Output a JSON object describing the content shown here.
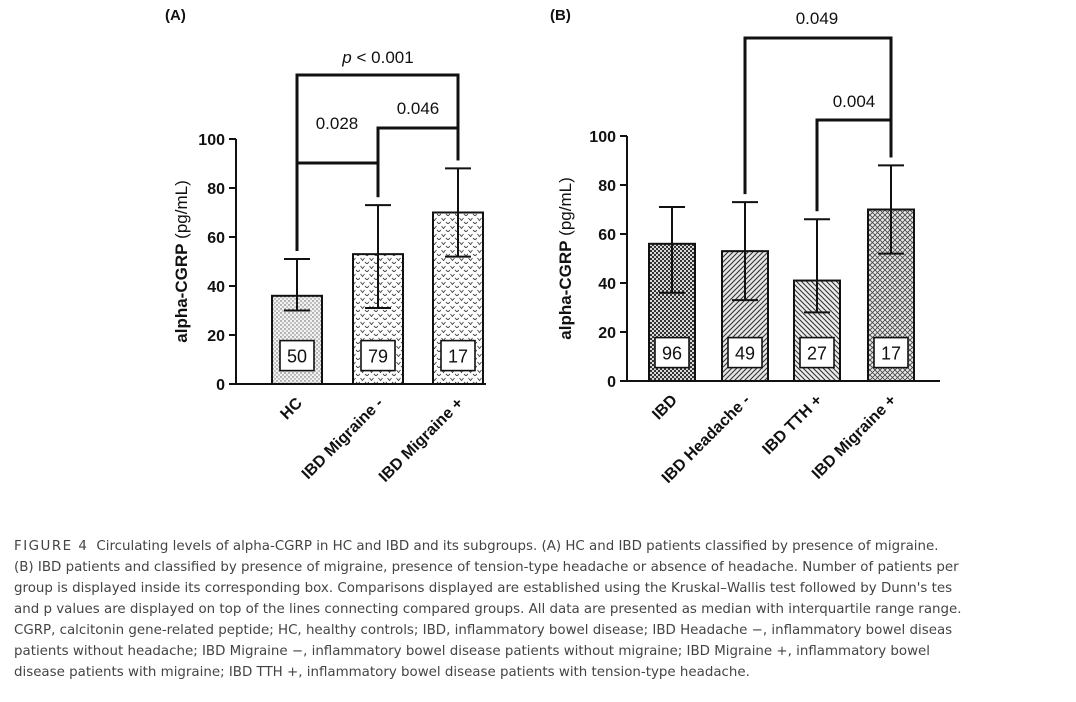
{
  "chart_data": [
    {
      "type": "bar",
      "panel_label": "(A)",
      "ylabel_bold": "alpha-CGRP",
      "ylabel_unit": "(pg/mL)",
      "ylim": [
        0,
        100
      ],
      "yticks": [
        0,
        20,
        40,
        60,
        80,
        100
      ],
      "categories": [
        "HC",
        "IBD Migraine -",
        "IBD Migraine +"
      ],
      "values": [
        36,
        53,
        70
      ],
      "error_low": [
        30,
        31,
        52
      ],
      "error_high": [
        51,
        73,
        88
      ],
      "n_labels": [
        "50",
        "79",
        "17"
      ],
      "patterns": [
        "dots",
        "waves",
        "waves"
      ],
      "comparisons": [
        {
          "from": 0,
          "to": 2,
          "label_italic": "p",
          "label": " < 0.001"
        },
        {
          "from": 0,
          "to": 1,
          "label_italic": "",
          "label": "0.028"
        },
        {
          "from": 1,
          "to": 2,
          "label_italic": "",
          "label": "0.046"
        }
      ]
    },
    {
      "type": "bar",
      "panel_label": "(B)",
      "ylabel_bold": "alpha-CGRP",
      "ylabel_unit": "(pg/mL)",
      "ylim": [
        0,
        100
      ],
      "yticks": [
        0,
        20,
        40,
        60,
        80,
        100
      ],
      "categories": [
        "IBD",
        "IBD Headache -",
        "IBD TTH +",
        "IBD Migraine +"
      ],
      "values": [
        56,
        53,
        41,
        70
      ],
      "error_low": [
        36,
        33,
        28,
        52
      ],
      "error_high": [
        71,
        73,
        66,
        88
      ],
      "n_labels": [
        "96",
        "49",
        "27",
        "17"
      ],
      "patterns": [
        "checks",
        "diag",
        "diag2",
        "cross"
      ],
      "comparisons": [
        {
          "from": 1,
          "to": 3,
          "label_italic": "",
          "label": "0.049"
        },
        {
          "from": 2,
          "to": 3,
          "label_italic": "",
          "label": "0.004"
        }
      ]
    }
  ],
  "caption": {
    "figure_label": "FIGURE 4",
    "lines": [
      "Circulating levels of alpha-CGRP in HC and IBD and its subgroups. (A) HC and IBD patients classified by presence of migraine.",
      "(B) IBD patients and classified by presence of migraine, presence of tension-type headache or absence of headache. Number of patients per",
      "group is displayed inside its corresponding box. Comparisons displayed are established using the Kruskal–Wallis test followed by Dunn's tes",
      "and p values are displayed on top of the lines connecting compared groups. All data are presented as median with interquartile range range.",
      "CGRP, calcitonin gene-related peptide; HC, healthy controls; IBD, inflammatory bowel disease; IBD Headache −, inflammatory bowel diseas",
      "patients without headache; IBD Migraine −, inflammatory bowel disease patients without migraine; IBD Migraine +, inflammatory bowel",
      "disease patients with migraine; IBD TTH +, inflammatory bowel disease patients with tension-type headache."
    ]
  },
  "colors": {
    "ink": "#111111",
    "caption": "#444444"
  }
}
